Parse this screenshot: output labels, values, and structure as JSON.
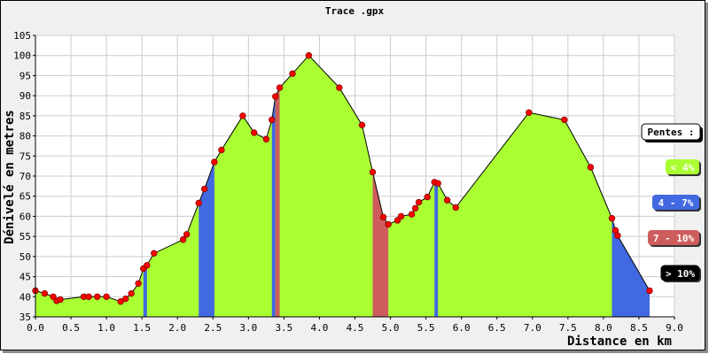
{
  "chart_data": {
    "type": "area",
    "title": "Trace .gpx",
    "xlabel": "Distance en km",
    "ylabel": "Dénivelé en metres",
    "xlim": [
      0,
      9
    ],
    "ylim": [
      35,
      105
    ],
    "xticks": [
      "0.0",
      "0.5",
      "1.0",
      "1.5",
      "2.0",
      "2.5",
      "3.0",
      "3.5",
      "4.0",
      "4.5",
      "5.0",
      "5.5",
      "6.0",
      "6.5",
      "7.0",
      "7.5",
      "8.0",
      "8.5",
      "9.0"
    ],
    "yticks": [
      "35",
      "40",
      "45",
      "50",
      "55",
      "60",
      "65",
      "70",
      "75",
      "80",
      "85",
      "90",
      "95",
      "100",
      "105"
    ],
    "grid": true,
    "legend": {
      "title": "Pentes :",
      "placement": "right",
      "entries": [
        {
          "label": "< 4%",
          "color": "#aaff33"
        },
        {
          "label": "4 - 7%",
          "color": "#4169e1"
        },
        {
          "label": "7 - 10%",
          "color": "#cd5c5c"
        },
        {
          "label": "> 10%",
          "color": "#000000"
        }
      ]
    },
    "points": [
      {
        "x": 0.0,
        "y": 41.5
      },
      {
        "x": 0.13,
        "y": 40.8
      },
      {
        "x": 0.25,
        "y": 40.0
      },
      {
        "x": 0.3,
        "y": 39.0
      },
      {
        "x": 0.35,
        "y": 39.3
      },
      {
        "x": 0.68,
        "y": 40.0
      },
      {
        "x": 0.75,
        "y": 40.0
      },
      {
        "x": 0.87,
        "y": 40.0
      },
      {
        "x": 1.0,
        "y": 40.0
      },
      {
        "x": 1.2,
        "y": 38.8
      },
      {
        "x": 1.27,
        "y": 39.5
      },
      {
        "x": 1.35,
        "y": 40.8
      },
      {
        "x": 1.45,
        "y": 43.3
      },
      {
        "x": 1.52,
        "y": 47.0
      },
      {
        "x": 1.57,
        "y": 47.8
      },
      {
        "x": 1.67,
        "y": 50.8
      },
      {
        "x": 2.08,
        "y": 54.2
      },
      {
        "x": 2.13,
        "y": 55.5
      },
      {
        "x": 2.3,
        "y": 63.3
      },
      {
        "x": 2.38,
        "y": 66.8
      },
      {
        "x": 2.52,
        "y": 73.5
      },
      {
        "x": 2.62,
        "y": 76.5
      },
      {
        "x": 2.92,
        "y": 85.0
      },
      {
        "x": 3.08,
        "y": 80.8
      },
      {
        "x": 3.25,
        "y": 79.2
      },
      {
        "x": 3.33,
        "y": 84.0
      },
      {
        "x": 3.38,
        "y": 89.8
      },
      {
        "x": 3.44,
        "y": 92.0
      },
      {
        "x": 3.62,
        "y": 95.5
      },
      {
        "x": 3.85,
        "y": 100.0
      },
      {
        "x": 4.28,
        "y": 92.0
      },
      {
        "x": 4.6,
        "y": 82.7
      },
      {
        "x": 4.75,
        "y": 71.0
      },
      {
        "x": 4.9,
        "y": 59.8
      },
      {
        "x": 4.97,
        "y": 58.0
      },
      {
        "x": 5.1,
        "y": 59.0
      },
      {
        "x": 5.15,
        "y": 60.0
      },
      {
        "x": 5.3,
        "y": 60.5
      },
      {
        "x": 5.35,
        "y": 62.0
      },
      {
        "x": 5.4,
        "y": 63.5
      },
      {
        "x": 5.52,
        "y": 64.8
      },
      {
        "x": 5.62,
        "y": 68.5
      },
      {
        "x": 5.67,
        "y": 68.2
      },
      {
        "x": 5.8,
        "y": 64.0
      },
      {
        "x": 5.92,
        "y": 62.2
      },
      {
        "x": 6.95,
        "y": 85.8
      },
      {
        "x": 7.45,
        "y": 84.0
      },
      {
        "x": 7.82,
        "y": 72.2
      },
      {
        "x": 8.12,
        "y": 59.5
      },
      {
        "x": 8.17,
        "y": 56.5
      },
      {
        "x": 8.2,
        "y": 55.2
      },
      {
        "x": 8.65,
        "y": 41.5
      }
    ],
    "slope_segments": [
      {
        "from": 1.52,
        "to": 1.57,
        "color": "#4169e1"
      },
      {
        "from": 2.3,
        "to": 2.52,
        "color": "#4169e1"
      },
      {
        "from": 3.33,
        "to": 3.38,
        "color": "#4169e1"
      },
      {
        "from": 3.38,
        "to": 3.44,
        "color": "#cd5c5c"
      },
      {
        "from": 4.75,
        "to": 4.97,
        "color": "#cd5c5c"
      },
      {
        "from": 5.62,
        "to": 5.67,
        "color": "#4169e1"
      },
      {
        "from": 8.12,
        "to": 8.65,
        "color": "#4169e1"
      }
    ],
    "base_color": "#aaff33"
  }
}
